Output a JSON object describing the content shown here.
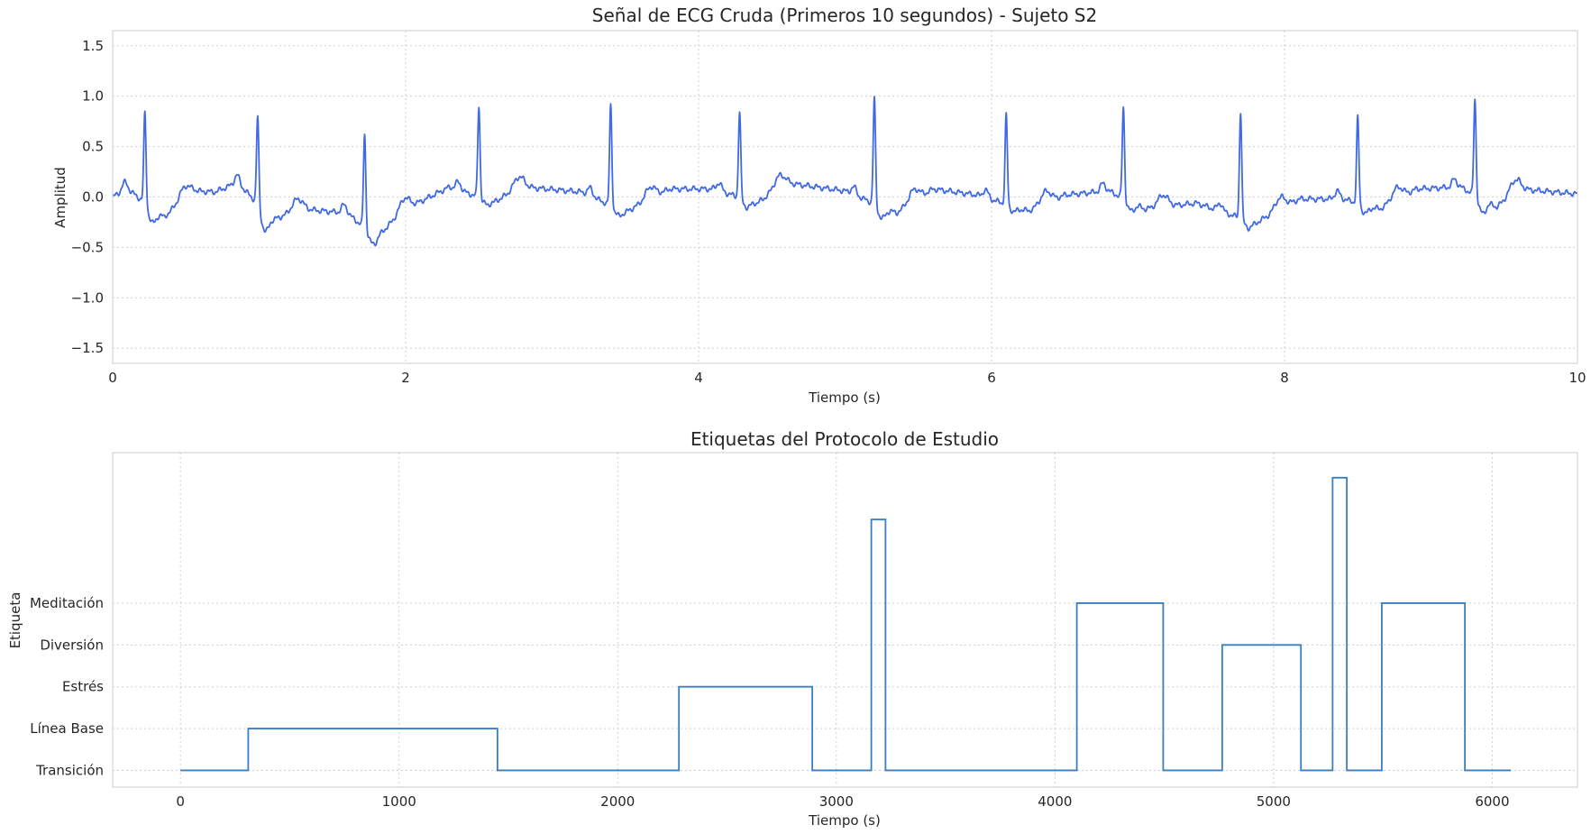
{
  "chart_data": [
    {
      "type": "line",
      "title": "Señal de ECG Cruda (Primeros 10 segundos) - Sujeto S2",
      "xlabel": "Tiempo (s)",
      "ylabel": "Amplitud",
      "xlim": [
        0,
        10
      ],
      "ylim": [
        -1.65,
        1.65
      ],
      "xticks": [
        0,
        2,
        4,
        6,
        8,
        10
      ],
      "xtick_labels": [
        "0",
        "2",
        "4",
        "6",
        "8",
        "10"
      ],
      "yticks": [
        -1.5,
        -1.0,
        -0.5,
        0.0,
        0.5,
        1.0,
        1.5
      ],
      "ytick_labels": [
        "−1.5",
        "−1.0",
        "−0.5",
        "0.0",
        "0.5",
        "1.0",
        "1.5"
      ],
      "grid": true,
      "color": "#4169e1",
      "series": [
        {
          "beats": [
            {
              "t": 0.22,
              "peak": 0.85,
              "base": -0.2
            },
            {
              "t": 0.99,
              "peak": 0.82,
              "base": -0.27
            },
            {
              "t": 1.72,
              "peak": 0.64,
              "base": -0.4
            },
            {
              "t": 2.5,
              "peak": 0.91,
              "base": -0.05
            },
            {
              "t": 3.4,
              "peak": 0.92,
              "base": -0.15
            },
            {
              "t": 4.28,
              "peak": 0.85,
              "base": -0.08
            },
            {
              "t": 5.2,
              "peak": 0.99,
              "base": -0.18
            },
            {
              "t": 6.1,
              "peak": 0.82,
              "base": -0.12
            },
            {
              "t": 6.9,
              "peak": 0.9,
              "base": -0.1
            },
            {
              "t": 7.7,
              "peak": 0.86,
              "base": -0.28
            },
            {
              "t": 8.5,
              "peak": 0.8,
              "base": -0.14
            },
            {
              "t": 9.3,
              "peak": 0.99,
              "base": -0.12
            }
          ],
          "baseline": [
            [
              0.0,
              0.0
            ],
            [
              0.1,
              0.08
            ],
            [
              0.35,
              -0.2
            ],
            [
              0.55,
              0.06
            ],
            [
              0.7,
              0.05
            ],
            [
              0.85,
              0.14
            ],
            [
              1.1,
              -0.22
            ],
            [
              1.3,
              -0.12
            ],
            [
              1.6,
              -0.16
            ],
            [
              1.8,
              -0.4
            ],
            [
              2.0,
              -0.12
            ],
            [
              2.3,
              0.1
            ],
            [
              2.6,
              -0.05
            ],
            [
              2.8,
              0.1
            ],
            [
              3.2,
              0.05
            ],
            [
              3.5,
              -0.15
            ],
            [
              3.8,
              0.08
            ],
            [
              4.1,
              0.08
            ],
            [
              4.4,
              -0.06
            ],
            [
              4.6,
              0.14
            ],
            [
              5.0,
              0.06
            ],
            [
              5.35,
              -0.16
            ],
            [
              5.6,
              0.08
            ],
            [
              5.9,
              0.02
            ],
            [
              6.25,
              -0.14
            ],
            [
              6.5,
              0.02
            ],
            [
              6.8,
              0.06
            ],
            [
              7.05,
              -0.12
            ],
            [
              7.4,
              -0.06
            ],
            [
              7.8,
              -0.26
            ],
            [
              8.1,
              -0.02
            ],
            [
              8.4,
              -0.02
            ],
            [
              8.65,
              -0.12
            ],
            [
              8.9,
              0.08
            ],
            [
              9.2,
              0.1
            ],
            [
              9.45,
              -0.1
            ],
            [
              9.6,
              0.08
            ],
            [
              10.0,
              0.03
            ]
          ]
        }
      ]
    },
    {
      "type": "line",
      "step": true,
      "title": "Etiquetas del Protocolo de Estudio",
      "xlabel": "Tiempo (s)",
      "ylabel": "Etiqueta",
      "xlim": [
        -310,
        6390
      ],
      "ylim": [
        -0.4,
        7.6
      ],
      "xticks": [
        0,
        1000,
        2000,
        3000,
        4000,
        5000,
        6000
      ],
      "xtick_labels": [
        "0",
        "1000",
        "2000",
        "3000",
        "4000",
        "5000",
        "6000"
      ],
      "yticks": [
        0,
        1,
        2,
        3,
        4
      ],
      "ytick_labels": [
        "Transición",
        "Línea Base",
        "Estrés",
        "Diversión",
        "Meditación"
      ],
      "grid": true,
      "color": "#3a7fc1",
      "series": [
        {
          "x": [
            0,
            310,
            1450,
            2280,
            2890,
            3160,
            3225,
            4100,
            4495,
            4765,
            5125,
            5270,
            5335,
            5495,
            5875,
            6085
          ],
          "y": [
            0,
            1,
            0,
            2,
            0,
            6,
            0,
            4,
            0,
            3,
            0,
            7,
            0,
            4,
            0,
            0
          ]
        }
      ]
    }
  ]
}
